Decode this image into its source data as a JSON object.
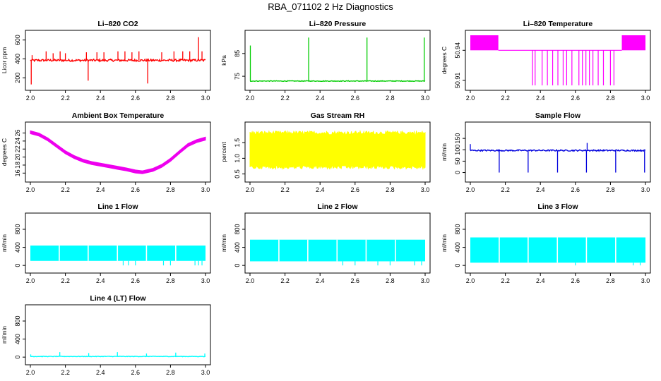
{
  "title": "RBA_071102  2 Hz Diagnostics",
  "chart_data": [
    {
      "type": "line",
      "title": "Li–820 CO2",
      "ylabel": "Licor ppm",
      "color": "#ff0000",
      "xlim": [
        2.0,
        3.0
      ],
      "ylim": [
        120,
        650
      ],
      "xticks": [
        2.0,
        2.2,
        2.4,
        2.6,
        2.8,
        3.0
      ],
      "xticklabels": [
        "2.0",
        "2.2",
        "2.4",
        "2.6",
        "2.8",
        "3.0"
      ],
      "yticks": [
        200,
        400,
        600
      ],
      "yticklabels": [
        "200",
        "400",
        "600"
      ],
      "pattern": "baseline",
      "baseline": 385,
      "noise": 12,
      "spikes": [
        {
          "x": 2.005,
          "y": 130
        },
        {
          "x": 2.01,
          "y": 440
        },
        {
          "x": 2.09,
          "y": 480
        },
        {
          "x": 2.13,
          "y": 460
        },
        {
          "x": 2.17,
          "y": 480
        },
        {
          "x": 2.2,
          "y": 460
        },
        {
          "x": 2.32,
          "y": 470
        },
        {
          "x": 2.33,
          "y": 170
        },
        {
          "x": 2.38,
          "y": 470
        },
        {
          "x": 2.42,
          "y": 470
        },
        {
          "x": 2.5,
          "y": 480
        },
        {
          "x": 2.54,
          "y": 480
        },
        {
          "x": 2.58,
          "y": 470
        },
        {
          "x": 2.62,
          "y": 480
        },
        {
          "x": 2.67,
          "y": 140
        },
        {
          "x": 2.75,
          "y": 470
        },
        {
          "x": 2.82,
          "y": 480
        },
        {
          "x": 2.87,
          "y": 480
        },
        {
          "x": 2.91,
          "y": 480
        },
        {
          "x": 2.96,
          "y": 630
        },
        {
          "x": 2.98,
          "y": 480
        }
      ]
    },
    {
      "type": "line",
      "title": "Li–820 Pressure",
      "ylabel": "kPa",
      "color": "#00cc00",
      "xlim": [
        2.0,
        3.0
      ],
      "ylim": [
        71,
        93
      ],
      "xticks": [
        2.0,
        2.2,
        2.4,
        2.6,
        2.8,
        3.0
      ],
      "xticklabels": [
        "2.0",
        "2.2",
        "2.4",
        "2.6",
        "2.8",
        "3.0"
      ],
      "yticks": [
        75,
        85
      ],
      "yticklabels": [
        "75",
        "85"
      ],
      "pattern": "baseline",
      "baseline": 72.9,
      "noise": 0.15,
      "spikes": [
        {
          "x": 2.002,
          "y": 88.5
        },
        {
          "x": 2.335,
          "y": 92
        },
        {
          "x": 2.668,
          "y": 92
        },
        {
          "x": 2.995,
          "y": 92
        }
      ]
    },
    {
      "type": "line",
      "title": "Li–820 Temperature",
      "ylabel": "degrees C",
      "color": "#ff00ff",
      "xlim": [
        2.0,
        3.0
      ],
      "ylim": [
        50.905,
        50.955
      ],
      "xticks": [
        2.0,
        2.2,
        2.4,
        2.6,
        2.8,
        3.0
      ],
      "xticklabels": [
        "2.0",
        "2.2",
        "2.4",
        "2.6",
        "2.8",
        "3.0"
      ],
      "yticks": [
        50.91,
        50.94
      ],
      "yticklabels": [
        "50.91",
        "50.94"
      ],
      "pattern": "temperature",
      "high": 50.955,
      "mid": 50.94,
      "low": 50.905,
      "bands": [
        [
          2.0,
          2.16
        ],
        [
          2.865,
          3.0
        ]
      ],
      "drops": [
        2.355,
        2.37,
        2.41,
        2.44,
        2.47,
        2.5,
        2.53,
        2.55,
        2.58,
        2.62,
        2.64,
        2.66,
        2.68,
        2.7,
        2.73,
        2.76,
        2.8,
        2.82
      ]
    },
    {
      "type": "area",
      "title": "Ambient Box Temperature",
      "ylabel": "degrees C",
      "color": "#ee00ee",
      "xlim": [
        2.0,
        3.0
      ],
      "ylim": [
        15,
        27.5
      ],
      "xticks": [
        2.0,
        2.2,
        2.4,
        2.6,
        2.8,
        3.0
      ],
      "xticklabels": [
        "2.0",
        "2.2",
        "2.4",
        "2.6",
        "2.8",
        "3.0"
      ],
      "yticks": [
        16,
        18,
        20,
        22,
        24,
        26
      ],
      "yticklabels": [
        "16",
        "18",
        "20",
        "22",
        "24",
        "26"
      ],
      "pattern": "curve",
      "band": 0.75,
      "x": [
        2.0,
        2.05,
        2.1,
        2.15,
        2.2,
        2.25,
        2.3,
        2.35,
        2.4,
        2.45,
        2.5,
        2.55,
        2.6,
        2.64,
        2.7,
        2.75,
        2.8,
        2.85,
        2.9,
        2.95,
        3.0
      ],
      "y": [
        26.2,
        25.6,
        24.4,
        22.8,
        21.2,
        20.0,
        19.1,
        18.5,
        18.1,
        17.7,
        17.3,
        16.9,
        16.4,
        16.2,
        16.8,
        17.8,
        19.3,
        21.2,
        23.0,
        24.0,
        24.6
      ]
    },
    {
      "type": "area",
      "title": "Gas Stream RH",
      "ylabel": "percent",
      "color": "#ffff00",
      "xlim": [
        2.0,
        3.0
      ],
      "ylim": [
        0.4,
        2.0
      ],
      "xticks": [
        2.0,
        2.2,
        2.4,
        2.6,
        2.8,
        3.0
      ],
      "xticklabels": [
        "2.0",
        "2.2",
        "2.4",
        "2.6",
        "2.8",
        "3.0"
      ],
      "yticks": [
        0.5,
        1.0,
        1.5
      ],
      "yticklabels": [
        "0.5",
        "1.0",
        "1.5"
      ],
      "pattern": "noiseband",
      "low": 0.78,
      "high": 1.75,
      "jitter": 0.12
    },
    {
      "type": "line",
      "title": "Sample Flow",
      "ylabel": "ml/min",
      "color": "#0000dd",
      "xlim": [
        2.0,
        3.0
      ],
      "ylim": [
        -20,
        200
      ],
      "xticks": [
        2.0,
        2.2,
        2.4,
        2.6,
        2.8,
        3.0
      ],
      "xticklabels": [
        "2.0",
        "2.2",
        "2.4",
        "2.6",
        "2.8",
        "3.0"
      ],
      "yticks": [
        0,
        50,
        100,
        150
      ],
      "yticklabels": [
        "0",
        "50",
        "100",
        "150"
      ],
      "pattern": "baseline",
      "baseline": 97,
      "noise": 3,
      "spikes": [
        {
          "x": 2.0,
          "y": 125
        },
        {
          "x": 2.165,
          "y": 0
        },
        {
          "x": 2.33,
          "y": 0
        },
        {
          "x": 2.498,
          "y": 0
        },
        {
          "x": 2.663,
          "y": 0
        },
        {
          "x": 2.667,
          "y": 130
        },
        {
          "x": 2.83,
          "y": 0
        },
        {
          "x": 2.995,
          "y": 0
        }
      ]
    },
    {
      "type": "area",
      "title": "Line 1 Flow",
      "ylabel": "ml/min",
      "color": "#00ffff",
      "xlim": [
        2.0,
        3.0
      ],
      "ylim": [
        -60,
        1050
      ],
      "xticks": [
        2.0,
        2.2,
        2.4,
        2.6,
        2.8,
        3.0
      ],
      "xticklabels": [
        "2.0",
        "2.2",
        "2.4",
        "2.6",
        "2.8",
        "3.0"
      ],
      "yticks": [
        0,
        400,
        800
      ],
      "yticklabels": [
        "0",
        "400",
        "800"
      ],
      "pattern": "flowband",
      "low": 100,
      "high": 440,
      "gaps": [
        2.165,
        2.33,
        2.497,
        2.663,
        2.83
      ],
      "dips": [
        2.53,
        2.56,
        2.6,
        2.76,
        2.8,
        2.94,
        2.96,
        2.98
      ]
    },
    {
      "type": "area",
      "title": "Line 2 Flow",
      "ylabel": "ml/min",
      "color": "#00ffff",
      "xlim": [
        2.0,
        3.0
      ],
      "ylim": [
        -60,
        1050
      ],
      "xticks": [
        2.0,
        2.2,
        2.4,
        2.6,
        2.8,
        3.0
      ],
      "xticklabels": [
        "2.0",
        "2.2",
        "2.4",
        "2.6",
        "2.8",
        "3.0"
      ],
      "yticks": [
        0,
        400,
        800
      ],
      "yticklabels": [
        "0",
        "400",
        "800"
      ],
      "pattern": "flowband",
      "low": 90,
      "high": 570,
      "gaps": [
        2.165,
        2.33,
        2.497,
        2.663,
        2.83
      ],
      "dips": [
        2.53,
        2.6,
        2.73,
        2.8,
        2.94,
        2.98
      ]
    },
    {
      "type": "area",
      "title": "Line 3 Flow",
      "ylabel": "ml/min",
      "color": "#00ffff",
      "xlim": [
        2.0,
        3.0
      ],
      "ylim": [
        -60,
        1050
      ],
      "xticks": [
        2.0,
        2.2,
        2.4,
        2.6,
        2.8,
        3.0
      ],
      "xticklabels": [
        "2.0",
        "2.2",
        "2.4",
        "2.6",
        "2.8",
        "3.0"
      ],
      "yticks": [
        0,
        400,
        800
      ],
      "yticklabels": [
        "0",
        "400",
        "800"
      ],
      "pattern": "flowband",
      "low": 60,
      "high": 620,
      "gaps": [
        2.165,
        2.33,
        2.497,
        2.663,
        2.83
      ],
      "dips": [
        2.6,
        2.93,
        2.97
      ]
    },
    {
      "type": "line",
      "title": "Line 4 (LT) Flow",
      "ylabel": "ml/min",
      "color": "#00ffff",
      "xlim": [
        2.0,
        3.0
      ],
      "ylim": [
        -60,
        1050
      ],
      "xticks": [
        2.0,
        2.2,
        2.4,
        2.6,
        2.8,
        3.0
      ],
      "xticklabels": [
        "2.0",
        "2.2",
        "2.4",
        "2.6",
        "2.8",
        "3.0"
      ],
      "yticks": [
        0,
        400,
        800
      ],
      "yticklabels": [
        "0",
        "400",
        "800"
      ],
      "pattern": "baseline",
      "baseline": 15,
      "noise": 6,
      "spikes": [
        {
          "x": 2.002,
          "y": 60
        },
        {
          "x": 2.168,
          "y": 110
        },
        {
          "x": 2.333,
          "y": 90
        },
        {
          "x": 2.497,
          "y": 110
        },
        {
          "x": 2.663,
          "y": 80
        },
        {
          "x": 2.83,
          "y": 100
        },
        {
          "x": 2.996,
          "y": 80
        }
      ]
    }
  ]
}
